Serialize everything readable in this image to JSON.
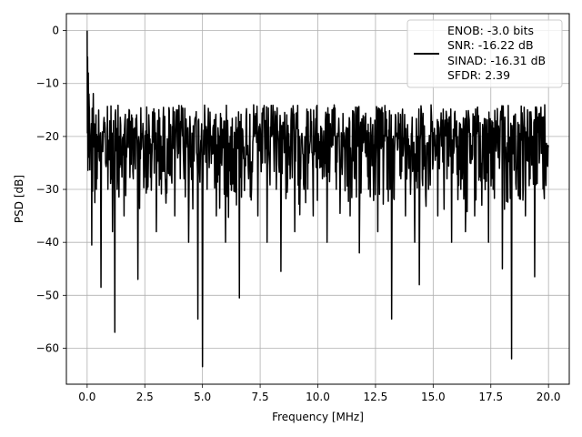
{
  "chart_data": {
    "type": "line",
    "title": "",
    "xlabel": "Frequency [MHz]",
    "ylabel": "PSD [dB]",
    "xlim": [
      -0.9,
      20.9
    ],
    "ylim": [
      -66.8,
      3.2
    ],
    "xticks": [
      0.0,
      2.5,
      5.0,
      7.5,
      10.0,
      12.5,
      15.0,
      17.5,
      20.0
    ],
    "xtick_labels": [
      "0.0",
      "2.5",
      "5.0",
      "7.5",
      "10.0",
      "12.5",
      "15.0",
      "17.5",
      "20.0"
    ],
    "yticks": [
      0,
      -10,
      -20,
      -30,
      -40,
      -50,
      -60
    ],
    "ytick_labels": [
      "0",
      "−10",
      "−20",
      "−30",
      "−40",
      "−50",
      "−60"
    ],
    "grid": true,
    "legend_position": "top-right",
    "series_color": "#000000",
    "series": [
      {
        "legend_lines": [
          "ENOB: -3.0 bits",
          "SNR: -16.22 dB",
          "SINAD: -16.31 dB",
          "SFDR: 2.39"
        ],
        "noise_floor_db": [
          -36,
          -14
        ],
        "x": [
          0.0,
          0.02,
          0.05,
          0.08,
          0.1,
          0.15,
          0.2,
          0.25,
          0.3,
          0.4,
          0.45,
          0.5,
          0.6,
          0.7,
          0.8,
          0.9,
          1.0,
          1.1,
          1.2,
          1.3,
          1.4,
          1.6,
          1.8,
          2.0,
          2.2,
          2.4,
          2.6,
          2.8,
          3.0,
          3.2,
          3.4,
          3.6,
          3.8,
          4.0,
          4.2,
          4.4,
          4.6,
          4.8,
          5.0,
          5.2,
          5.4,
          5.6,
          5.8,
          6.0,
          6.2,
          6.4,
          6.6,
          6.8,
          7.0,
          7.2,
          7.4,
          7.6,
          7.8,
          8.0,
          8.2,
          8.4,
          8.6,
          8.8,
          9.0,
          9.2,
          9.4,
          9.6,
          9.8,
          10.0,
          10.2,
          10.4,
          10.6,
          10.8,
          11.0,
          11.2,
          11.4,
          11.6,
          11.8,
          12.0,
          12.2,
          12.4,
          12.6,
          12.8,
          13.0,
          13.2,
          13.4,
          13.6,
          13.8,
          14.0,
          14.2,
          14.4,
          14.6,
          14.8,
          15.0,
          15.2,
          15.4,
          15.6,
          15.8,
          16.0,
          16.2,
          16.4,
          16.6,
          16.8,
          17.0,
          17.2,
          17.4,
          17.6,
          17.8,
          18.0,
          18.2,
          18.4,
          18.6,
          18.8,
          19.0,
          19.2,
          19.4,
          19.6,
          19.8,
          20.0
        ],
        "y": [
          0.0,
          -5.0,
          -8.0,
          -12.0,
          -15.0,
          -20.0,
          -40.5,
          -18.0,
          -22.0,
          -30.0,
          -20.0,
          -15.0,
          -48.5,
          -20.0,
          -25.0,
          -30.0,
          -18.0,
          -38.0,
          -57.0,
          -30.0,
          -20.0,
          -35.0,
          -18.0,
          -28.0,
          -47.0,
          -20.0,
          -30.0,
          -25.0,
          -38.0,
          -20.0,
          -30.0,
          -22.0,
          -35.0,
          -20.0,
          -28.0,
          -40.0,
          -18.0,
          -54.5,
          -63.5,
          -30.0,
          -20.0,
          -35.0,
          -25.0,
          -40.0,
          -20.0,
          -30.0,
          -50.5,
          -22.0,
          -28.0,
          -20.0,
          -35.0,
          -25.0,
          -40.0,
          -20.0,
          -30.0,
          -45.5,
          -22.0,
          -28.0,
          -38.0,
          -20.0,
          -30.0,
          -25.0,
          -35.0,
          -20.0,
          -28.0,
          -40.0,
          -22.0,
          -30.0,
          -25.0,
          -20.0,
          -35.0,
          -28.0,
          -42.0,
          -20.0,
          -30.0,
          -25.0,
          -38.0,
          -22.0,
          -30.0,
          -54.5,
          -20.0,
          -28.0,
          -35.0,
          -25.0,
          -40.0,
          -48.0,
          -22.0,
          -30.0,
          -25.0,
          -35.0,
          -20.0,
          -28.0,
          -40.0,
          -22.0,
          -30.0,
          -38.0,
          -25.0,
          -35.0,
          -20.0,
          -28.0,
          -40.0,
          -30.0,
          -22.0,
          -45.0,
          -28.0,
          -62.0,
          -30.0,
          -22.0,
          -35.0,
          -28.0,
          -46.5,
          -25.0,
          -30.0,
          -22.0
        ]
      }
    ]
  }
}
